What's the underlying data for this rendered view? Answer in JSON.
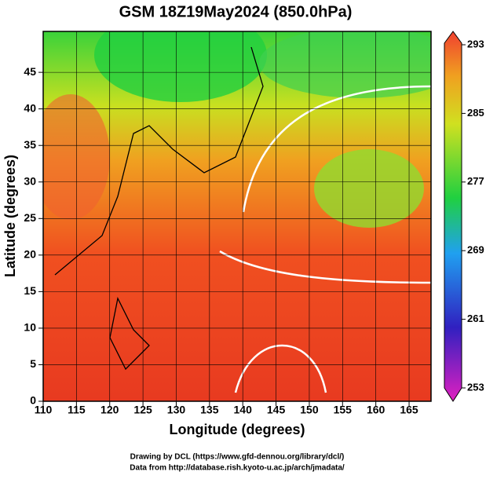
{
  "title": "GSM 18Z19May2024 (850.0hPa)",
  "x_axis": {
    "label": "Longitude (degrees)",
    "lim": [
      110,
      168.3
    ],
    "ticks": [
      110,
      115,
      120,
      125,
      130,
      135,
      140,
      145,
      150,
      155,
      160,
      165
    ]
  },
  "y_axis": {
    "label": "Latitude (degrees)",
    "lim": [
      0,
      50.6
    ],
    "ticks": [
      0,
      5,
      10,
      15,
      20,
      25,
      30,
      35,
      40,
      45
    ]
  },
  "colorbar": {
    "lim": [
      253,
      293
    ],
    "ticks": [
      253,
      261,
      269,
      277,
      285,
      293
    ]
  },
  "footer": [
    "Drawing by DCL (https://www.gfd-dennou.org/library/dcl/)",
    "Data from http://database.rish.kyoto-u.ac.jp/arch/jmadata/"
  ]
}
